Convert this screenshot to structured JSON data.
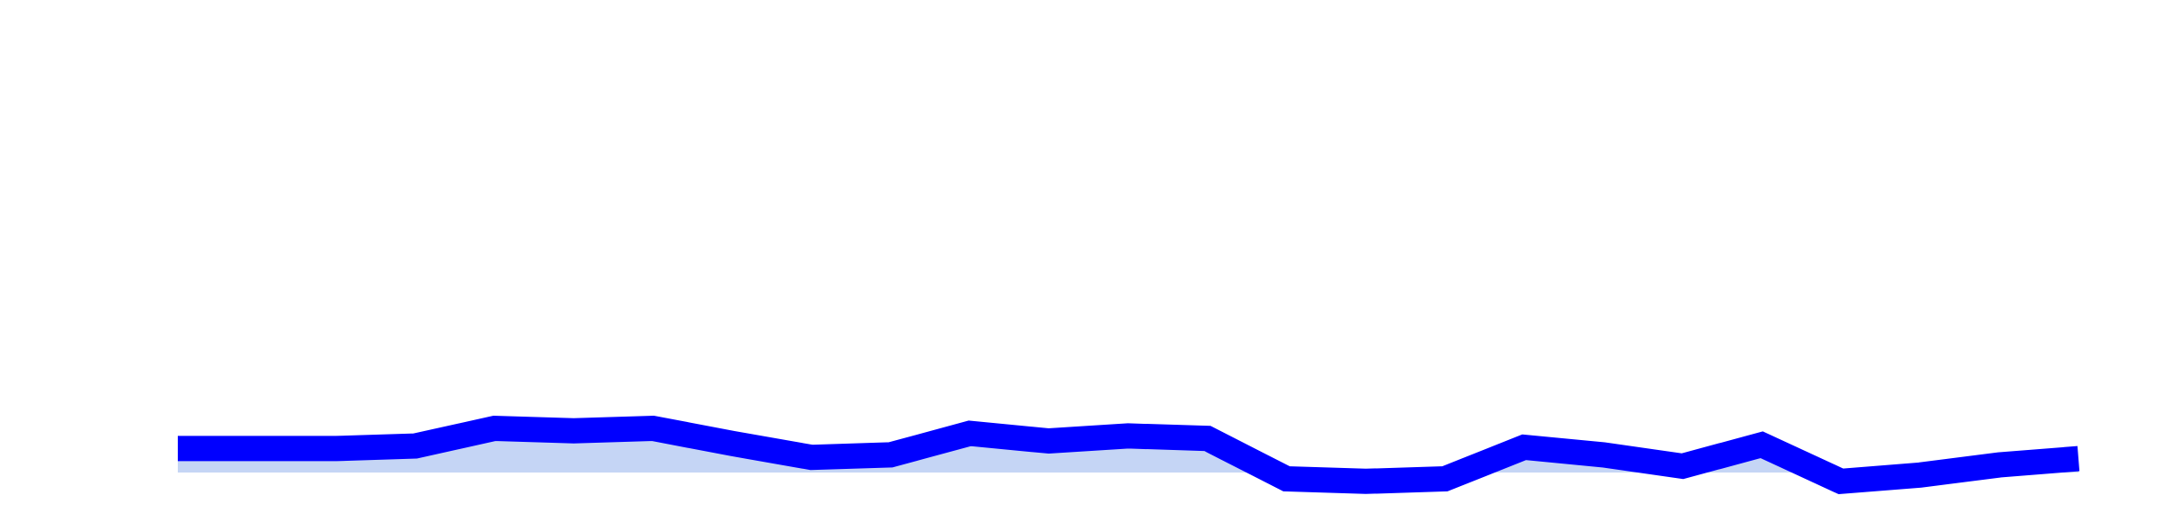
{
  "chart_data": {
    "type": "area",
    "x": [
      0,
      1,
      2,
      3,
      4,
      5,
      6,
      7,
      8,
      9,
      10,
      11,
      12,
      13,
      14,
      15,
      16,
      17,
      18,
      19,
      20,
      21,
      22,
      23,
      24
    ],
    "series": [
      {
        "values": [
          19,
          19,
          19,
          21,
          35,
          33,
          35,
          23,
          12,
          14,
          31,
          25,
          29,
          27,
          -5,
          -7,
          -5,
          20,
          14,
          5,
          22,
          -7,
          -2,
          6,
          11
        ]
      }
    ],
    "ylim": [
      -15,
      360
    ],
    "baseline": 0,
    "grid": false,
    "legend": "none",
    "colors": {
      "line": "#0000ff",
      "fill": "#c5d5f5",
      "background": "#ffffff"
    }
  }
}
